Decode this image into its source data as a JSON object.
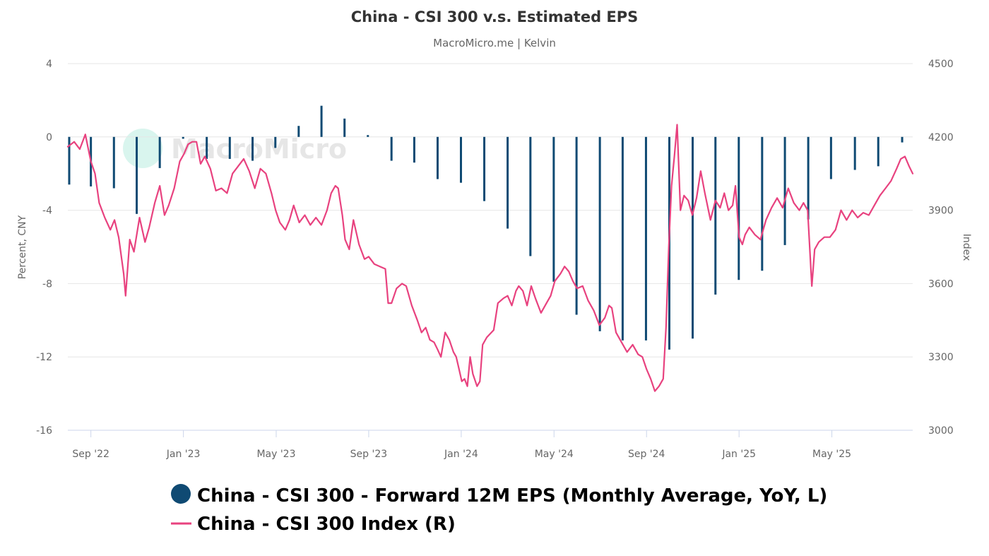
{
  "chart_data": {
    "type": "bar+line",
    "title": "China - CSI 300 v.s. Estimated EPS",
    "subtitle": "MacroMicro.me | Kelvin",
    "watermark": "MacroMicro",
    "left_axis": {
      "label": "Percent, CNY",
      "min": -16,
      "max": 4,
      "ticks": [
        4,
        0,
        -4,
        -8,
        -12,
        -16
      ]
    },
    "right_axis": {
      "label": "Index",
      "min": 3000,
      "max": 4500,
      "ticks": [
        4500,
        4200,
        3900,
        3600,
        3300,
        3000
      ]
    },
    "x_axis": {
      "start": 2022.667,
      "end": 2025.708,
      "ticks": [
        {
          "label": "Sep '22",
          "t": 2022.75
        },
        {
          "label": "Jan '23",
          "t": 2023.083
        },
        {
          "label": "May '23",
          "t": 2023.417
        },
        {
          "label": "Sep '23",
          "t": 2023.75
        },
        {
          "label": "Jan '24",
          "t": 2024.083
        },
        {
          "label": "May '24",
          "t": 2024.417
        },
        {
          "label": "Sep '24",
          "t": 2024.75
        },
        {
          "label": "Jan '25",
          "t": 2025.083
        },
        {
          "label": "May '25",
          "t": 2025.417
        }
      ]
    },
    "series": [
      {
        "name": "China - CSI 300 - Forward 12M EPS (Monthly Average, YoY, L)",
        "type": "bar",
        "axis": "left",
        "color": "#0f4a73",
        "points": [
          [
            2022.672,
            -2.6
          ],
          [
            2022.75,
            -2.7
          ],
          [
            2022.833,
            -2.8
          ],
          [
            2022.915,
            -4.2
          ],
          [
            2022.998,
            -1.7
          ],
          [
            2023.082,
            -0.1
          ],
          [
            2023.167,
            -1.2
          ],
          [
            2023.25,
            -1.2
          ],
          [
            2023.332,
            -1.3
          ],
          [
            2023.414,
            -0.6
          ],
          [
            2023.498,
            0.6
          ],
          [
            2023.58,
            1.7
          ],
          [
            2023.663,
            1.0
          ],
          [
            2023.747,
            0.1
          ],
          [
            2023.832,
            -1.3
          ],
          [
            2023.914,
            -1.4
          ],
          [
            2023.998,
            -2.3
          ],
          [
            2024.082,
            -2.5
          ],
          [
            2024.166,
            -3.5
          ],
          [
            2024.25,
            -5.0
          ],
          [
            2024.332,
            -6.5
          ],
          [
            2024.416,
            -7.9
          ],
          [
            2024.498,
            -9.7
          ],
          [
            2024.582,
            -10.6
          ],
          [
            2024.664,
            -11.1
          ],
          [
            2024.748,
            -11.1
          ],
          [
            2024.832,
            -11.6
          ],
          [
            2024.916,
            -11.0
          ],
          [
            2024.998,
            -8.6
          ],
          [
            2025.082,
            -7.8
          ],
          [
            2025.166,
            -7.3
          ],
          [
            2025.248,
            -5.9
          ],
          [
            2025.332,
            -4.5
          ],
          [
            2025.414,
            -2.3
          ],
          [
            2025.5,
            -1.8
          ],
          [
            2025.584,
            -1.6
          ],
          [
            2025.67,
            -0.3
          ]
        ]
      },
      {
        "name": "China - CSI 300 Index (R)",
        "type": "line",
        "axis": "right",
        "color": "#e8427f",
        "points": [
          [
            2022.667,
            4160
          ],
          [
            2022.69,
            4180
          ],
          [
            2022.71,
            4150
          ],
          [
            2022.73,
            4210
          ],
          [
            2022.75,
            4100
          ],
          [
            2022.765,
            4050
          ],
          [
            2022.78,
            3930
          ],
          [
            2022.8,
            3870
          ],
          [
            2022.82,
            3820
          ],
          [
            2022.835,
            3860
          ],
          [
            2022.85,
            3790
          ],
          [
            2022.868,
            3640
          ],
          [
            2022.875,
            3550
          ],
          [
            2022.89,
            3780
          ],
          [
            2022.905,
            3730
          ],
          [
            2022.925,
            3870
          ],
          [
            2022.945,
            3770
          ],
          [
            2022.96,
            3830
          ],
          [
            2022.98,
            3930
          ],
          [
            2022.998,
            4000
          ],
          [
            2023.015,
            3880
          ],
          [
            2023.03,
            3920
          ],
          [
            2023.05,
            3990
          ],
          [
            2023.07,
            4100
          ],
          [
            2023.085,
            4130
          ],
          [
            2023.1,
            4170
          ],
          [
            2023.115,
            4180
          ],
          [
            2023.13,
            4180
          ],
          [
            2023.145,
            4090
          ],
          [
            2023.16,
            4120
          ],
          [
            2023.18,
            4070
          ],
          [
            2023.2,
            3980
          ],
          [
            2023.22,
            3990
          ],
          [
            2023.24,
            3970
          ],
          [
            2023.26,
            4050
          ],
          [
            2023.28,
            4080
          ],
          [
            2023.3,
            4110
          ],
          [
            2023.32,
            4060
          ],
          [
            2023.34,
            3990
          ],
          [
            2023.36,
            4070
          ],
          [
            2023.38,
            4050
          ],
          [
            2023.4,
            3970
          ],
          [
            2023.415,
            3900
          ],
          [
            2023.43,
            3850
          ],
          [
            2023.45,
            3820
          ],
          [
            2023.465,
            3860
          ],
          [
            2023.48,
            3920
          ],
          [
            2023.5,
            3850
          ],
          [
            2023.52,
            3880
          ],
          [
            2023.54,
            3840
          ],
          [
            2023.56,
            3870
          ],
          [
            2023.58,
            3840
          ],
          [
            2023.6,
            3900
          ],
          [
            2023.615,
            3970
          ],
          [
            2023.63,
            4000
          ],
          [
            2023.64,
            3990
          ],
          [
            2023.655,
            3880
          ],
          [
            2023.665,
            3780
          ],
          [
            2023.68,
            3740
          ],
          [
            2023.695,
            3860
          ],
          [
            2023.715,
            3760
          ],
          [
            2023.735,
            3700
          ],
          [
            2023.75,
            3710
          ],
          [
            2023.77,
            3680
          ],
          [
            2023.79,
            3670
          ],
          [
            2023.81,
            3660
          ],
          [
            2023.82,
            3520
          ],
          [
            2023.832,
            3520
          ],
          [
            2023.85,
            3580
          ],
          [
            2023.87,
            3600
          ],
          [
            2023.885,
            3590
          ],
          [
            2023.905,
            3510
          ],
          [
            2023.925,
            3450
          ],
          [
            2023.94,
            3400
          ],
          [
            2023.955,
            3420
          ],
          [
            2023.97,
            3370
          ],
          [
            2023.985,
            3360
          ],
          [
            2023.998,
            3330
          ],
          [
            2024.01,
            3300
          ],
          [
            2024.025,
            3400
          ],
          [
            2024.04,
            3370
          ],
          [
            2024.055,
            3320
          ],
          [
            2024.065,
            3300
          ],
          [
            2024.075,
            3250
          ],
          [
            2024.085,
            3200
          ],
          [
            2024.095,
            3210
          ],
          [
            2024.105,
            3180
          ],
          [
            2024.115,
            3300
          ],
          [
            2024.125,
            3230
          ],
          [
            2024.14,
            3180
          ],
          [
            2024.15,
            3200
          ],
          [
            2024.16,
            3350
          ],
          [
            2024.175,
            3380
          ],
          [
            2024.2,
            3410
          ],
          [
            2024.215,
            3520
          ],
          [
            2024.235,
            3540
          ],
          [
            2024.25,
            3550
          ],
          [
            2024.265,
            3510
          ],
          [
            2024.28,
            3570
          ],
          [
            2024.29,
            3590
          ],
          [
            2024.305,
            3570
          ],
          [
            2024.32,
            3510
          ],
          [
            2024.335,
            3590
          ],
          [
            2024.35,
            3540
          ],
          [
            2024.37,
            3480
          ],
          [
            2024.39,
            3520
          ],
          [
            2024.405,
            3550
          ],
          [
            2024.42,
            3610
          ],
          [
            2024.44,
            3640
          ],
          [
            2024.455,
            3670
          ],
          [
            2024.47,
            3650
          ],
          [
            2024.485,
            3610
          ],
          [
            2024.5,
            3580
          ],
          [
            2024.52,
            3590
          ],
          [
            2024.54,
            3530
          ],
          [
            2024.56,
            3490
          ],
          [
            2024.58,
            3430
          ],
          [
            2024.6,
            3460
          ],
          [
            2024.615,
            3510
          ],
          [
            2024.625,
            3500
          ],
          [
            2024.64,
            3400
          ],
          [
            2024.66,
            3360
          ],
          [
            2024.68,
            3320
          ],
          [
            2024.7,
            3350
          ],
          [
            2024.72,
            3310
          ],
          [
            2024.735,
            3300
          ],
          [
            2024.75,
            3250
          ],
          [
            2024.765,
            3210
          ],
          [
            2024.78,
            3160
          ],
          [
            2024.795,
            3180
          ],
          [
            2024.81,
            3210
          ],
          [
            2024.82,
            3420
          ],
          [
            2024.83,
            3750
          ],
          [
            2024.84,
            4000
          ],
          [
            2024.85,
            4120
          ],
          [
            2024.86,
            4250
          ],
          [
            2024.872,
            3900
          ],
          [
            2024.885,
            3960
          ],
          [
            2024.9,
            3940
          ],
          [
            2024.915,
            3880
          ],
          [
            2024.93,
            3950
          ],
          [
            2024.945,
            4060
          ],
          [
            2024.96,
            3970
          ],
          [
            2024.98,
            3860
          ],
          [
            2024.998,
            3940
          ],
          [
            2025.015,
            3910
          ],
          [
            2025.03,
            3970
          ],
          [
            2025.045,
            3900
          ],
          [
            2025.06,
            3920
          ],
          [
            2025.07,
            4000
          ],
          [
            2025.083,
            3790
          ],
          [
            2025.095,
            3760
          ],
          [
            2025.105,
            3800
          ],
          [
            2025.12,
            3830
          ],
          [
            2025.14,
            3800
          ],
          [
            2025.16,
            3780
          ],
          [
            2025.18,
            3860
          ],
          [
            2025.2,
            3910
          ],
          [
            2025.22,
            3950
          ],
          [
            2025.24,
            3910
          ],
          [
            2025.26,
            3990
          ],
          [
            2025.28,
            3930
          ],
          [
            2025.3,
            3900
          ],
          [
            2025.315,
            3930
          ],
          [
            2025.33,
            3900
          ],
          [
            2025.345,
            3590
          ],
          [
            2025.355,
            3740
          ],
          [
            2025.37,
            3770
          ],
          [
            2025.39,
            3790
          ],
          [
            2025.41,
            3790
          ],
          [
            2025.43,
            3820
          ],
          [
            2025.45,
            3900
          ],
          [
            2025.47,
            3860
          ],
          [
            2025.49,
            3900
          ],
          [
            2025.51,
            3870
          ],
          [
            2025.53,
            3890
          ],
          [
            2025.55,
            3880
          ],
          [
            2025.57,
            3920
          ],
          [
            2025.59,
            3960
          ],
          [
            2025.61,
            3990
          ],
          [
            2025.63,
            4020
          ],
          [
            2025.65,
            4070
          ],
          [
            2025.665,
            4110
          ],
          [
            2025.68,
            4120
          ],
          [
            2025.695,
            4080
          ],
          [
            2025.708,
            4050
          ]
        ]
      }
    ],
    "legend": [
      {
        "label": "China - CSI 300 - Forward 12M EPS (Monthly Average, YoY, L)",
        "marker": "circle",
        "color": "#0f4a73"
      },
      {
        "label": "China - CSI 300 Index (R)",
        "marker": "line",
        "color": "#e8427f"
      }
    ]
  }
}
